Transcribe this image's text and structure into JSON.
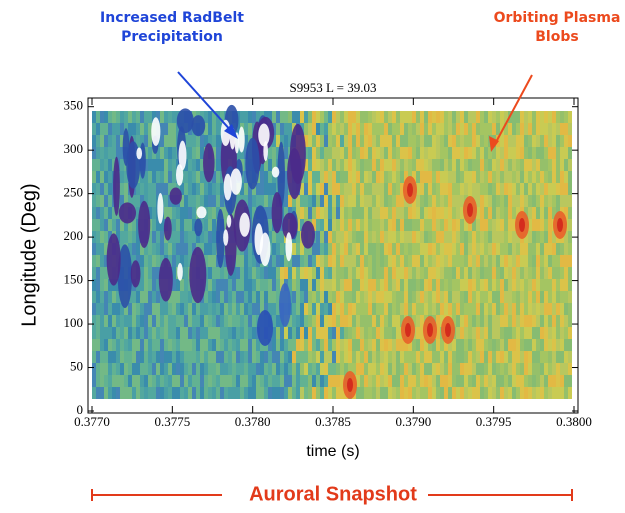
{
  "chart_data": {
    "type": "heatmap",
    "title": "S9953 L = 39.03",
    "xlabel": "time (s)",
    "ylabel": "Longitude (Deg)",
    "xlim": [
      0.377,
      0.38
    ],
    "xticks": [
      {
        "value": 0.377,
        "label": "0.3770"
      },
      {
        "value": 0.3775,
        "label": "0.3775"
      },
      {
        "value": 0.378,
        "label": "0.3780"
      },
      {
        "value": 0.3785,
        "label": "0.3785"
      },
      {
        "value": 0.379,
        "label": "0.3790"
      },
      {
        "value": 0.3795,
        "label": "0.3795"
      },
      {
        "value": 0.38,
        "label": "0.3800"
      }
    ],
    "ylim": [
      0,
      360
    ],
    "yticks": [
      0,
      50,
      100,
      150,
      200,
      250,
      300,
      350
    ],
    "annotations": [
      {
        "lines": [
          "Increased RadBelt",
          "Precipitation"
        ],
        "color": "#1f45d8"
      },
      {
        "lines": [
          "Orbiting Plasma",
          "Blobs"
        ],
        "color": "#ec4a1e"
      },
      {
        "lines": [
          "Auroral Snapshot"
        ],
        "color": "#e23a1a"
      }
    ]
  }
}
